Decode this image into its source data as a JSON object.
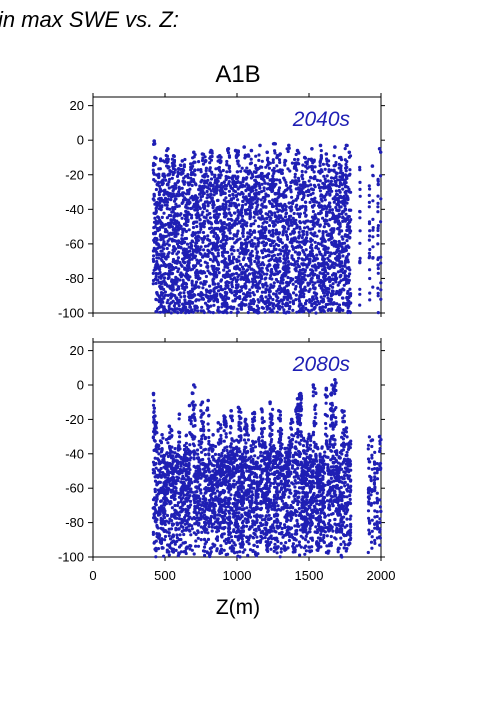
{
  "header_text": "in max SWE vs. Z:",
  "chart_data": {
    "type": "scatter",
    "title": "A1B",
    "xlabel": "Z(m)",
    "ylabel": "",
    "xlim": [
      0,
      2000
    ],
    "ylim": [
      -100,
      25
    ],
    "xticks": [
      0,
      500,
      1000,
      1500,
      2000
    ],
    "yticks": [
      -100,
      -80,
      -60,
      -40,
      -20,
      0,
      20
    ],
    "marker_color": "#1f1fb4",
    "note": "dense point clouds; values represent the visible distribution of points (Z in m, change in %)",
    "panels": [
      {
        "label": "2040s",
        "x_range_points": [
          420,
          2000
        ],
        "gap_x": [
          1790,
          1920
        ],
        "points": [
          [
            425,
            -0.5
          ],
          [
            428,
            -2
          ],
          [
            430,
            -10
          ],
          [
            520,
            -5
          ],
          [
            560,
            -9
          ],
          [
            620,
            -12
          ],
          [
            700,
            -7
          ],
          [
            760,
            -8
          ],
          [
            820,
            -6
          ],
          [
            880,
            -9
          ],
          [
            940,
            -5
          ],
          [
            990,
            -6
          ],
          [
            1050,
            -4
          ],
          [
            1100,
            -6
          ],
          [
            1160,
            -3
          ],
          [
            1210,
            -7
          ],
          [
            1260,
            -2
          ],
          [
            1300,
            -8
          ],
          [
            1360,
            -3
          ],
          [
            1420,
            -6
          ],
          [
            1470,
            -10
          ],
          [
            1520,
            -5
          ],
          [
            1580,
            -3
          ],
          [
            1620,
            -8
          ],
          [
            1680,
            -4
          ],
          [
            1720,
            -10
          ],
          [
            1760,
            -3
          ],
          [
            1780,
            -7
          ],
          [
            1940,
            -15
          ],
          [
            1990,
            -5
          ]
        ]
      },
      {
        "label": "2080s",
        "x_range_points": [
          420,
          2000
        ],
        "gap_x": [
          1790,
          1920
        ],
        "points": [
          [
            420,
            -5
          ],
          [
            430,
            -18
          ],
          [
            440,
            -22
          ],
          [
            530,
            -24
          ],
          [
            600,
            -17
          ],
          [
            670,
            -12
          ],
          [
            700,
            0
          ],
          [
            760,
            -10
          ],
          [
            800,
            -9
          ],
          [
            870,
            -22
          ],
          [
            910,
            -18
          ],
          [
            960,
            -15
          ],
          [
            1010,
            -13
          ],
          [
            1060,
            -20
          ],
          [
            1120,
            -16
          ],
          [
            1170,
            -14
          ],
          [
            1230,
            -10
          ],
          [
            1290,
            -15
          ],
          [
            1380,
            -20
          ],
          [
            1420,
            -8
          ],
          [
            1440,
            -5
          ],
          [
            1530,
            0
          ],
          [
            1620,
            -2
          ],
          [
            1660,
            0
          ],
          [
            1680,
            3
          ],
          [
            1730,
            -15
          ],
          [
            1760,
            -25
          ],
          [
            1940,
            -32
          ],
          [
            1990,
            -30
          ]
        ]
      }
    ]
  }
}
